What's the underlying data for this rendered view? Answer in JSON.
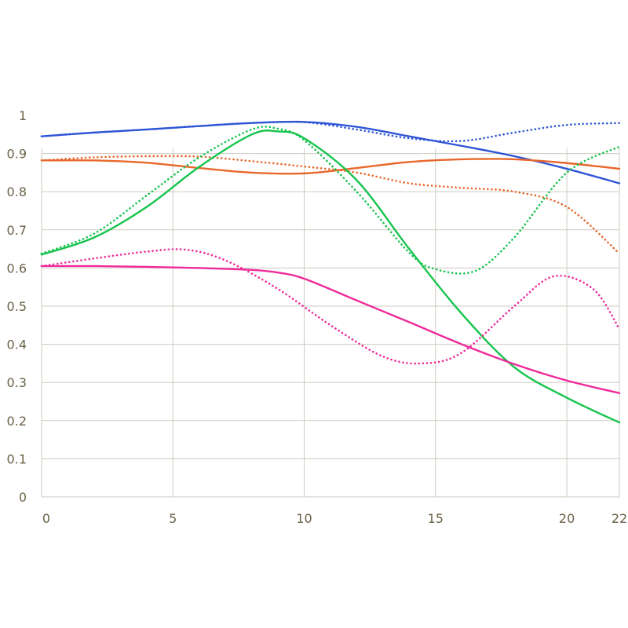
{
  "chart_data": {
    "type": "line",
    "title": "",
    "xlabel": "",
    "ylabel": "",
    "xlim": [
      0,
      22
    ],
    "ylim": [
      0,
      1
    ],
    "grid": true,
    "x_ticks": [
      0,
      5,
      10,
      15,
      20,
      22
    ],
    "y_ticks": [
      0,
      0.1,
      0.2,
      0.3,
      0.4,
      0.5,
      0.6,
      0.7,
      0.8,
      0.9,
      1
    ],
    "x_tick_labels": [
      "0",
      "5",
      "10",
      "15",
      "20",
      "22"
    ],
    "y_tick_labels": [
      "0",
      "0.1",
      "0.2",
      "0.3",
      "0.4",
      "0.5",
      "0.6",
      "0.7",
      "0.8",
      "0.9",
      "1"
    ],
    "series": [
      {
        "color": "#2e55d6",
        "style": "solid",
        "x": [
          0,
          2,
          4,
          6,
          8,
          10,
          12,
          14,
          16,
          18,
          20,
          22
        ],
        "y": [
          0.945,
          0.955,
          0.963,
          0.972,
          0.98,
          0.983,
          0.97,
          0.945,
          0.92,
          0.893,
          0.86,
          0.822
        ]
      },
      {
        "color": "#2e55d6",
        "style": "dotted",
        "x": [
          0,
          2,
          4,
          6,
          8,
          10,
          12,
          14,
          16,
          18,
          20,
          22
        ],
        "y": [
          0.945,
          0.955,
          0.963,
          0.972,
          0.98,
          0.982,
          0.963,
          0.94,
          0.933,
          0.955,
          0.975,
          0.98
        ]
      },
      {
        "color": "#e8672a",
        "style": "solid",
        "x": [
          0,
          2,
          4,
          6,
          8,
          10,
          12,
          14,
          16,
          18,
          20,
          22
        ],
        "y": [
          0.882,
          0.882,
          0.876,
          0.862,
          0.85,
          0.848,
          0.862,
          0.878,
          0.885,
          0.885,
          0.875,
          0.86
        ]
      },
      {
        "color": "#e8672a",
        "style": "dotted",
        "x": [
          0,
          2,
          4,
          6,
          8,
          10,
          12,
          14,
          16,
          18,
          20,
          22
        ],
        "y": [
          0.882,
          0.89,
          0.893,
          0.892,
          0.88,
          0.866,
          0.85,
          0.822,
          0.81,
          0.8,
          0.76,
          0.638
        ]
      },
      {
        "color": "#16c44d",
        "style": "solid",
        "x": [
          0,
          2,
          4,
          6,
          8,
          9,
          10,
          12,
          14,
          16,
          18,
          20,
          22
        ],
        "y": [
          0.635,
          0.68,
          0.76,
          0.865,
          0.95,
          0.958,
          0.94,
          0.83,
          0.65,
          0.48,
          0.34,
          0.26,
          0.195
        ]
      },
      {
        "color": "#16c44d",
        "style": "dotted",
        "x": [
          0,
          2,
          4,
          6,
          8,
          9,
          10,
          12,
          14,
          15,
          16.5,
          18,
          20,
          22
        ],
        "y": [
          0.638,
          0.69,
          0.79,
          0.89,
          0.963,
          0.965,
          0.935,
          0.8,
          0.64,
          0.597,
          0.592,
          0.68,
          0.85,
          0.918
        ]
      },
      {
        "color": "#ef2a9a",
        "style": "solid",
        "x": [
          0,
          2,
          4,
          6,
          8,
          9,
          10,
          12,
          14,
          16,
          18,
          20,
          22
        ],
        "y": [
          0.605,
          0.605,
          0.603,
          0.6,
          0.595,
          0.588,
          0.572,
          0.515,
          0.458,
          0.4,
          0.348,
          0.305,
          0.272
        ]
      },
      {
        "color": "#ef2a9a",
        "style": "dotted",
        "x": [
          0,
          2,
          4,
          5.5,
          7,
          9,
          11,
          13,
          14.5,
          16,
          18,
          19.5,
          21,
          22
        ],
        "y": [
          0.605,
          0.625,
          0.643,
          0.648,
          0.62,
          0.545,
          0.45,
          0.368,
          0.35,
          0.378,
          0.5,
          0.578,
          0.545,
          0.44
        ]
      }
    ]
  }
}
